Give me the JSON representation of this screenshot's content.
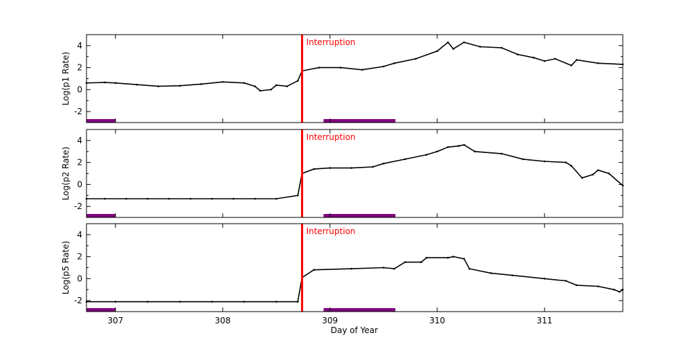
{
  "chart_data": {
    "type": "scatter",
    "xlabel": "Day of Year",
    "xlim": [
      306.73,
      311.73
    ],
    "xticks": [
      307,
      308,
      309,
      310,
      311
    ],
    "xtick_labels": [
      "307",
      "308",
      "309",
      "310",
      "311"
    ],
    "grid": false,
    "colors": {
      "data": "#000000",
      "interruption": "#ff0000",
      "band": "#800080"
    },
    "interruption": {
      "x": 308.74,
      "label": "Interruption"
    },
    "bands": [
      [
        306.73,
        307.0
      ],
      [
        308.94,
        309.61
      ]
    ],
    "panels": [
      {
        "ylabel": "Log(p1 Rate)",
        "ylim": [
          -3,
          5
        ],
        "yticks": [
          -2,
          0,
          2,
          4
        ],
        "ytick_labels": [
          "-2",
          "0",
          "2",
          "4"
        ],
        "x": [
          306.73,
          306.9,
          307.0,
          307.2,
          307.4,
          307.6,
          307.8,
          308.0,
          308.2,
          308.3,
          308.35,
          308.45,
          308.5,
          308.6,
          308.7,
          308.74,
          308.9,
          309.1,
          309.3,
          309.5,
          309.6,
          309.8,
          310.0,
          310.1,
          310.15,
          310.25,
          310.4,
          310.6,
          310.75,
          310.9,
          311.0,
          311.1,
          311.25,
          311.3,
          311.5,
          311.73
        ],
        "y": [
          0.6,
          0.65,
          0.6,
          0.45,
          0.3,
          0.35,
          0.5,
          0.7,
          0.6,
          0.3,
          -0.1,
          0.0,
          0.4,
          0.3,
          0.8,
          1.7,
          2.0,
          2.0,
          1.8,
          2.1,
          2.4,
          2.8,
          3.5,
          4.3,
          3.7,
          4.3,
          3.9,
          3.8,
          3.2,
          2.9,
          2.6,
          2.8,
          2.2,
          2.7,
          2.4,
          2.3
        ]
      },
      {
        "ylabel": "Log(p2 Rate)",
        "ylim": [
          -3,
          5
        ],
        "yticks": [
          -2,
          0,
          2,
          4
        ],
        "ytick_labels": [
          "-2",
          "0",
          "2",
          "4"
        ],
        "x": [
          306.73,
          306.9,
          307.1,
          307.3,
          307.5,
          307.7,
          307.9,
          308.1,
          308.3,
          308.5,
          308.7,
          308.74,
          308.85,
          309.0,
          309.2,
          309.4,
          309.5,
          309.7,
          309.9,
          310.0,
          310.1,
          310.2,
          310.25,
          310.35,
          310.6,
          310.8,
          311.0,
          311.2,
          311.25,
          311.35,
          311.45,
          311.5,
          311.6,
          311.73
        ],
        "y": [
          -1.3,
          -1.3,
          -1.3,
          -1.3,
          -1.3,
          -1.3,
          -1.3,
          -1.3,
          -1.3,
          -1.3,
          -1.0,
          1.0,
          1.4,
          1.5,
          1.5,
          1.6,
          1.9,
          2.3,
          2.7,
          3.0,
          3.4,
          3.5,
          3.6,
          3.0,
          2.8,
          2.3,
          2.1,
          2.0,
          1.7,
          0.6,
          0.9,
          1.3,
          1.0,
          -0.1
        ]
      },
      {
        "ylabel": "Log(p5 Rate)",
        "ylim": [
          -3,
          5
        ],
        "yticks": [
          -2,
          0,
          2,
          4
        ],
        "ytick_labels": [
          "-2",
          "0",
          "2",
          "4"
        ],
        "x": [
          306.73,
          307.0,
          307.3,
          307.6,
          307.9,
          308.2,
          308.5,
          308.7,
          308.74,
          308.85,
          309.2,
          309.5,
          309.6,
          309.7,
          309.85,
          309.9,
          310.1,
          310.15,
          310.25,
          310.3,
          310.5,
          310.7,
          311.0,
          311.2,
          311.3,
          311.5,
          311.65,
          311.7,
          311.73
        ],
        "y": [
          -2.1,
          -2.1,
          -2.1,
          -2.1,
          -2.1,
          -2.1,
          -2.1,
          -2.1,
          0.1,
          0.8,
          0.9,
          1.0,
          0.9,
          1.5,
          1.5,
          1.9,
          1.9,
          2.0,
          1.8,
          0.9,
          0.5,
          0.3,
          0.0,
          -0.2,
          -0.6,
          -0.7,
          -1.0,
          -1.2,
          -1.0
        ]
      }
    ]
  }
}
